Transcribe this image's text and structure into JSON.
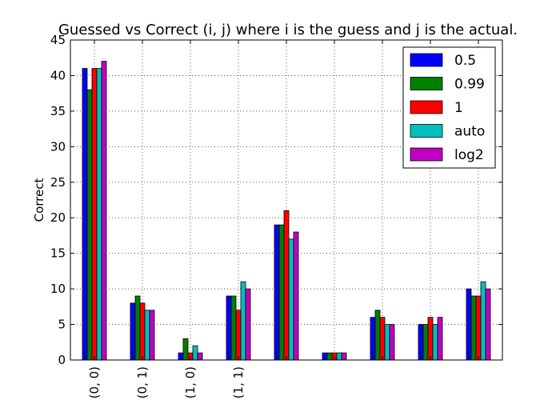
{
  "chart_data": {
    "type": "bar",
    "title": "Guessed vs Correct (i, j) where i is the guess and j is the actual.",
    "xlabel": "",
    "ylabel": "Correct",
    "ylim": [
      0,
      45
    ],
    "yticks": [
      0,
      5,
      10,
      15,
      20,
      25,
      30,
      35,
      40,
      45
    ],
    "grid": true,
    "legend_position": "top-right",
    "categories": [
      "(0, 0)",
      "(0, 1)",
      "(1, 0)",
      "(1, 1)",
      "",
      "",
      "",
      "",
      ""
    ],
    "series": [
      {
        "name": "0.5",
        "color": "#0000ff",
        "values": [
          41,
          8,
          1,
          9,
          19,
          1,
          6,
          5,
          10
        ]
      },
      {
        "name": "0.99",
        "color": "#008000",
        "values": [
          38,
          9,
          3,
          9,
          19,
          1,
          7,
          5,
          9
        ]
      },
      {
        "name": "1",
        "color": "#ff0000",
        "values": [
          41,
          8,
          1,
          7,
          21,
          1,
          6,
          6,
          9
        ]
      },
      {
        "name": "auto",
        "color": "#00bfbf",
        "values": [
          41,
          7,
          2,
          11,
          17,
          1,
          5,
          5,
          11
        ]
      },
      {
        "name": "log2",
        "color": "#bf00bf",
        "values": [
          42,
          7,
          1,
          10,
          18,
          1,
          5,
          6,
          10
        ]
      }
    ]
  }
}
